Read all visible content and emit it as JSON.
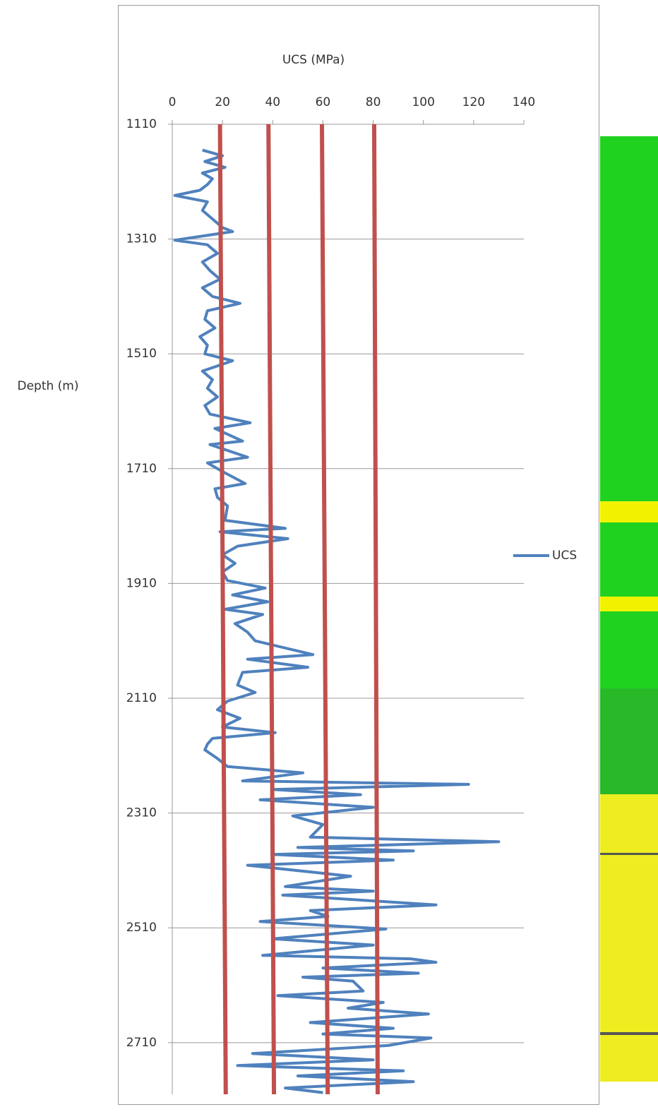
{
  "chart_data": {
    "type": "line",
    "title": "UCS (MPa)",
    "y_label": "Depth (m)",
    "xlim": [
      0,
      140
    ],
    "xticks": [
      0,
      20,
      40,
      60,
      80,
      100,
      120,
      140
    ],
    "x_axis_position": "top",
    "ylim": [
      1110,
      2800
    ],
    "y_inverted": true,
    "yticks": [
      1110,
      1310,
      1510,
      1710,
      1910,
      2110,
      2310,
      2510,
      2710
    ],
    "grid": "y",
    "legend": "right",
    "series": [
      {
        "name": "UCS",
        "color": "#4f81bd",
        "depth": [
          1155,
          1165,
          1175,
          1185,
          1195,
          1205,
          1215,
          1225,
          1234,
          1245,
          1260,
          1275,
          1290,
          1297,
          1312,
          1320,
          1335,
          1350,
          1365,
          1380,
          1395,
          1410,
          1422,
          1435,
          1450,
          1465,
          1480,
          1495,
          1510,
          1522,
          1540,
          1555,
          1570,
          1585,
          1600,
          1615,
          1630,
          1640,
          1662,
          1668,
          1690,
          1700,
          1715,
          1736,
          1745,
          1760,
          1775,
          1800,
          1814,
          1820,
          1832,
          1845,
          1860,
          1875,
          1890,
          1905,
          1918,
          1930,
          1942,
          1955,
          1964,
          1980,
          1995,
          2010,
          2034,
          2042,
          2056,
          2065,
          2087,
          2100,
          2115,
          2130,
          2145,
          2160,
          2170,
          2180,
          2190,
          2200,
          2215,
          2229,
          2240,
          2254,
          2260,
          2269,
          2278,
          2287,
          2300,
          2315,
          2330,
          2352,
          2360,
          2370,
          2376,
          2382,
          2392,
          2401,
          2420,
          2438,
          2446,
          2453,
          2470,
          2480,
          2490,
          2499,
          2512,
          2529,
          2540,
          2558,
          2564,
          2570,
          2580,
          2589,
          2596,
          2603,
          2620,
          2628,
          2640,
          2650,
          2660,
          2675,
          2685,
          2695,
          2702,
          2715,
          2729,
          2740,
          2750,
          2759,
          2768,
          2778,
          2789,
          2797
        ],
        "values": [
          12,
          20,
          13,
          21,
          12,
          16,
          14,
          11,
          1,
          14,
          12,
          16,
          20,
          24,
          1,
          14,
          18,
          12,
          15,
          19,
          12,
          16,
          27,
          14,
          13,
          17,
          11,
          14,
          13,
          24,
          12,
          16,
          14,
          18,
          13,
          15,
          31,
          17,
          28,
          15,
          30,
          14,
          20,
          29,
          17,
          18,
          22,
          21,
          45,
          19,
          46,
          26,
          20,
          25,
          20,
          22,
          37,
          24,
          38,
          21,
          36,
          25,
          30,
          33,
          56,
          30,
          54,
          28,
          26,
          33,
          22,
          18,
          27,
          20,
          41,
          16,
          14,
          13,
          18,
          22,
          52,
          28,
          118,
          40,
          75,
          35,
          80,
          48,
          60,
          55,
          130,
          50,
          96,
          40,
          88,
          30,
          71,
          45,
          80,
          44,
          105,
          55,
          62,
          35,
          85,
          40,
          80,
          36,
          95,
          105,
          60,
          98,
          52,
          72,
          76,
          42,
          84,
          70,
          102,
          55,
          88,
          60,
          103,
          86,
          32,
          80,
          26,
          92,
          50,
          96,
          45,
          60
        ]
      }
    ],
    "reference_lines": [
      {
        "color": "#c0504d",
        "x": [
          19,
          21.3
        ],
        "y": [
          1110,
          2800
        ]
      },
      {
        "color": "#c0504d",
        "x": [
          38.3,
          40.5
        ],
        "y": [
          1110,
          2800
        ]
      },
      {
        "color": "#c0504d",
        "x": [
          59.6,
          61.9
        ],
        "y": [
          1110,
          2800
        ]
      },
      {
        "color": "#c0504d",
        "x": [
          80.4,
          81.8
        ],
        "y": [
          1110,
          2800
        ]
      }
    ]
  }
}
